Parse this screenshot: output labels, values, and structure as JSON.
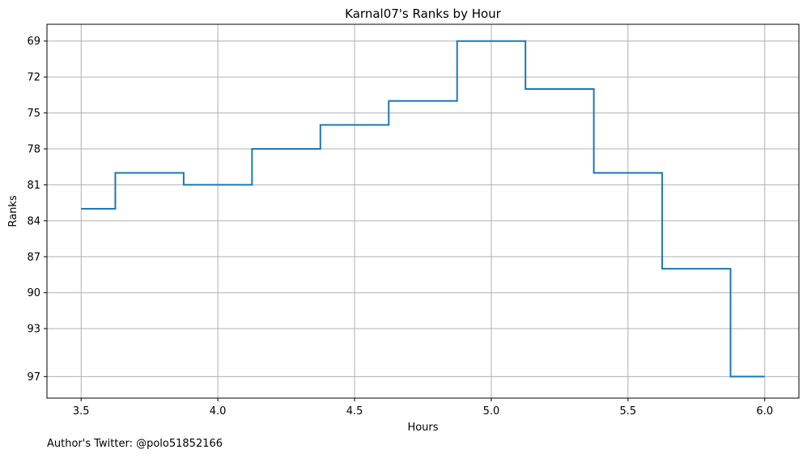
{
  "chart_data": {
    "type": "line",
    "drawstyle": "steps-mid",
    "title": "Karnal07's Ranks by Hour",
    "xlabel": "Hours",
    "ylabel": "Ranks",
    "footnote": "Author's Twitter: @polo51852166",
    "xlim": [
      3.375,
      6.125
    ],
    "ylim": [
      98.8,
      67.6
    ],
    "y_inverted": true,
    "grid": true,
    "x_ticks": [
      3.5,
      4.0,
      4.5,
      5.0,
      5.5,
      6.0
    ],
    "x_tick_labels": [
      "3.5",
      "4.0",
      "4.5",
      "5.0",
      "5.5",
      "6.0"
    ],
    "y_ticks": [
      69,
      72,
      75,
      78,
      81,
      84,
      87,
      90,
      93,
      97
    ],
    "y_tick_labels": [
      "69",
      "72",
      "75",
      "78",
      "81",
      "84",
      "87",
      "90",
      "93",
      "97"
    ],
    "series": [
      {
        "color": "#1f77b4",
        "x": [
          3.5,
          3.75,
          4.0,
          4.25,
          4.5,
          4.75,
          5.0,
          5.25,
          5.5,
          5.75,
          6.0
        ],
        "y": [
          83,
          80,
          81,
          78,
          76,
          74,
          69,
          73,
          80,
          88,
          97
        ]
      }
    ]
  }
}
